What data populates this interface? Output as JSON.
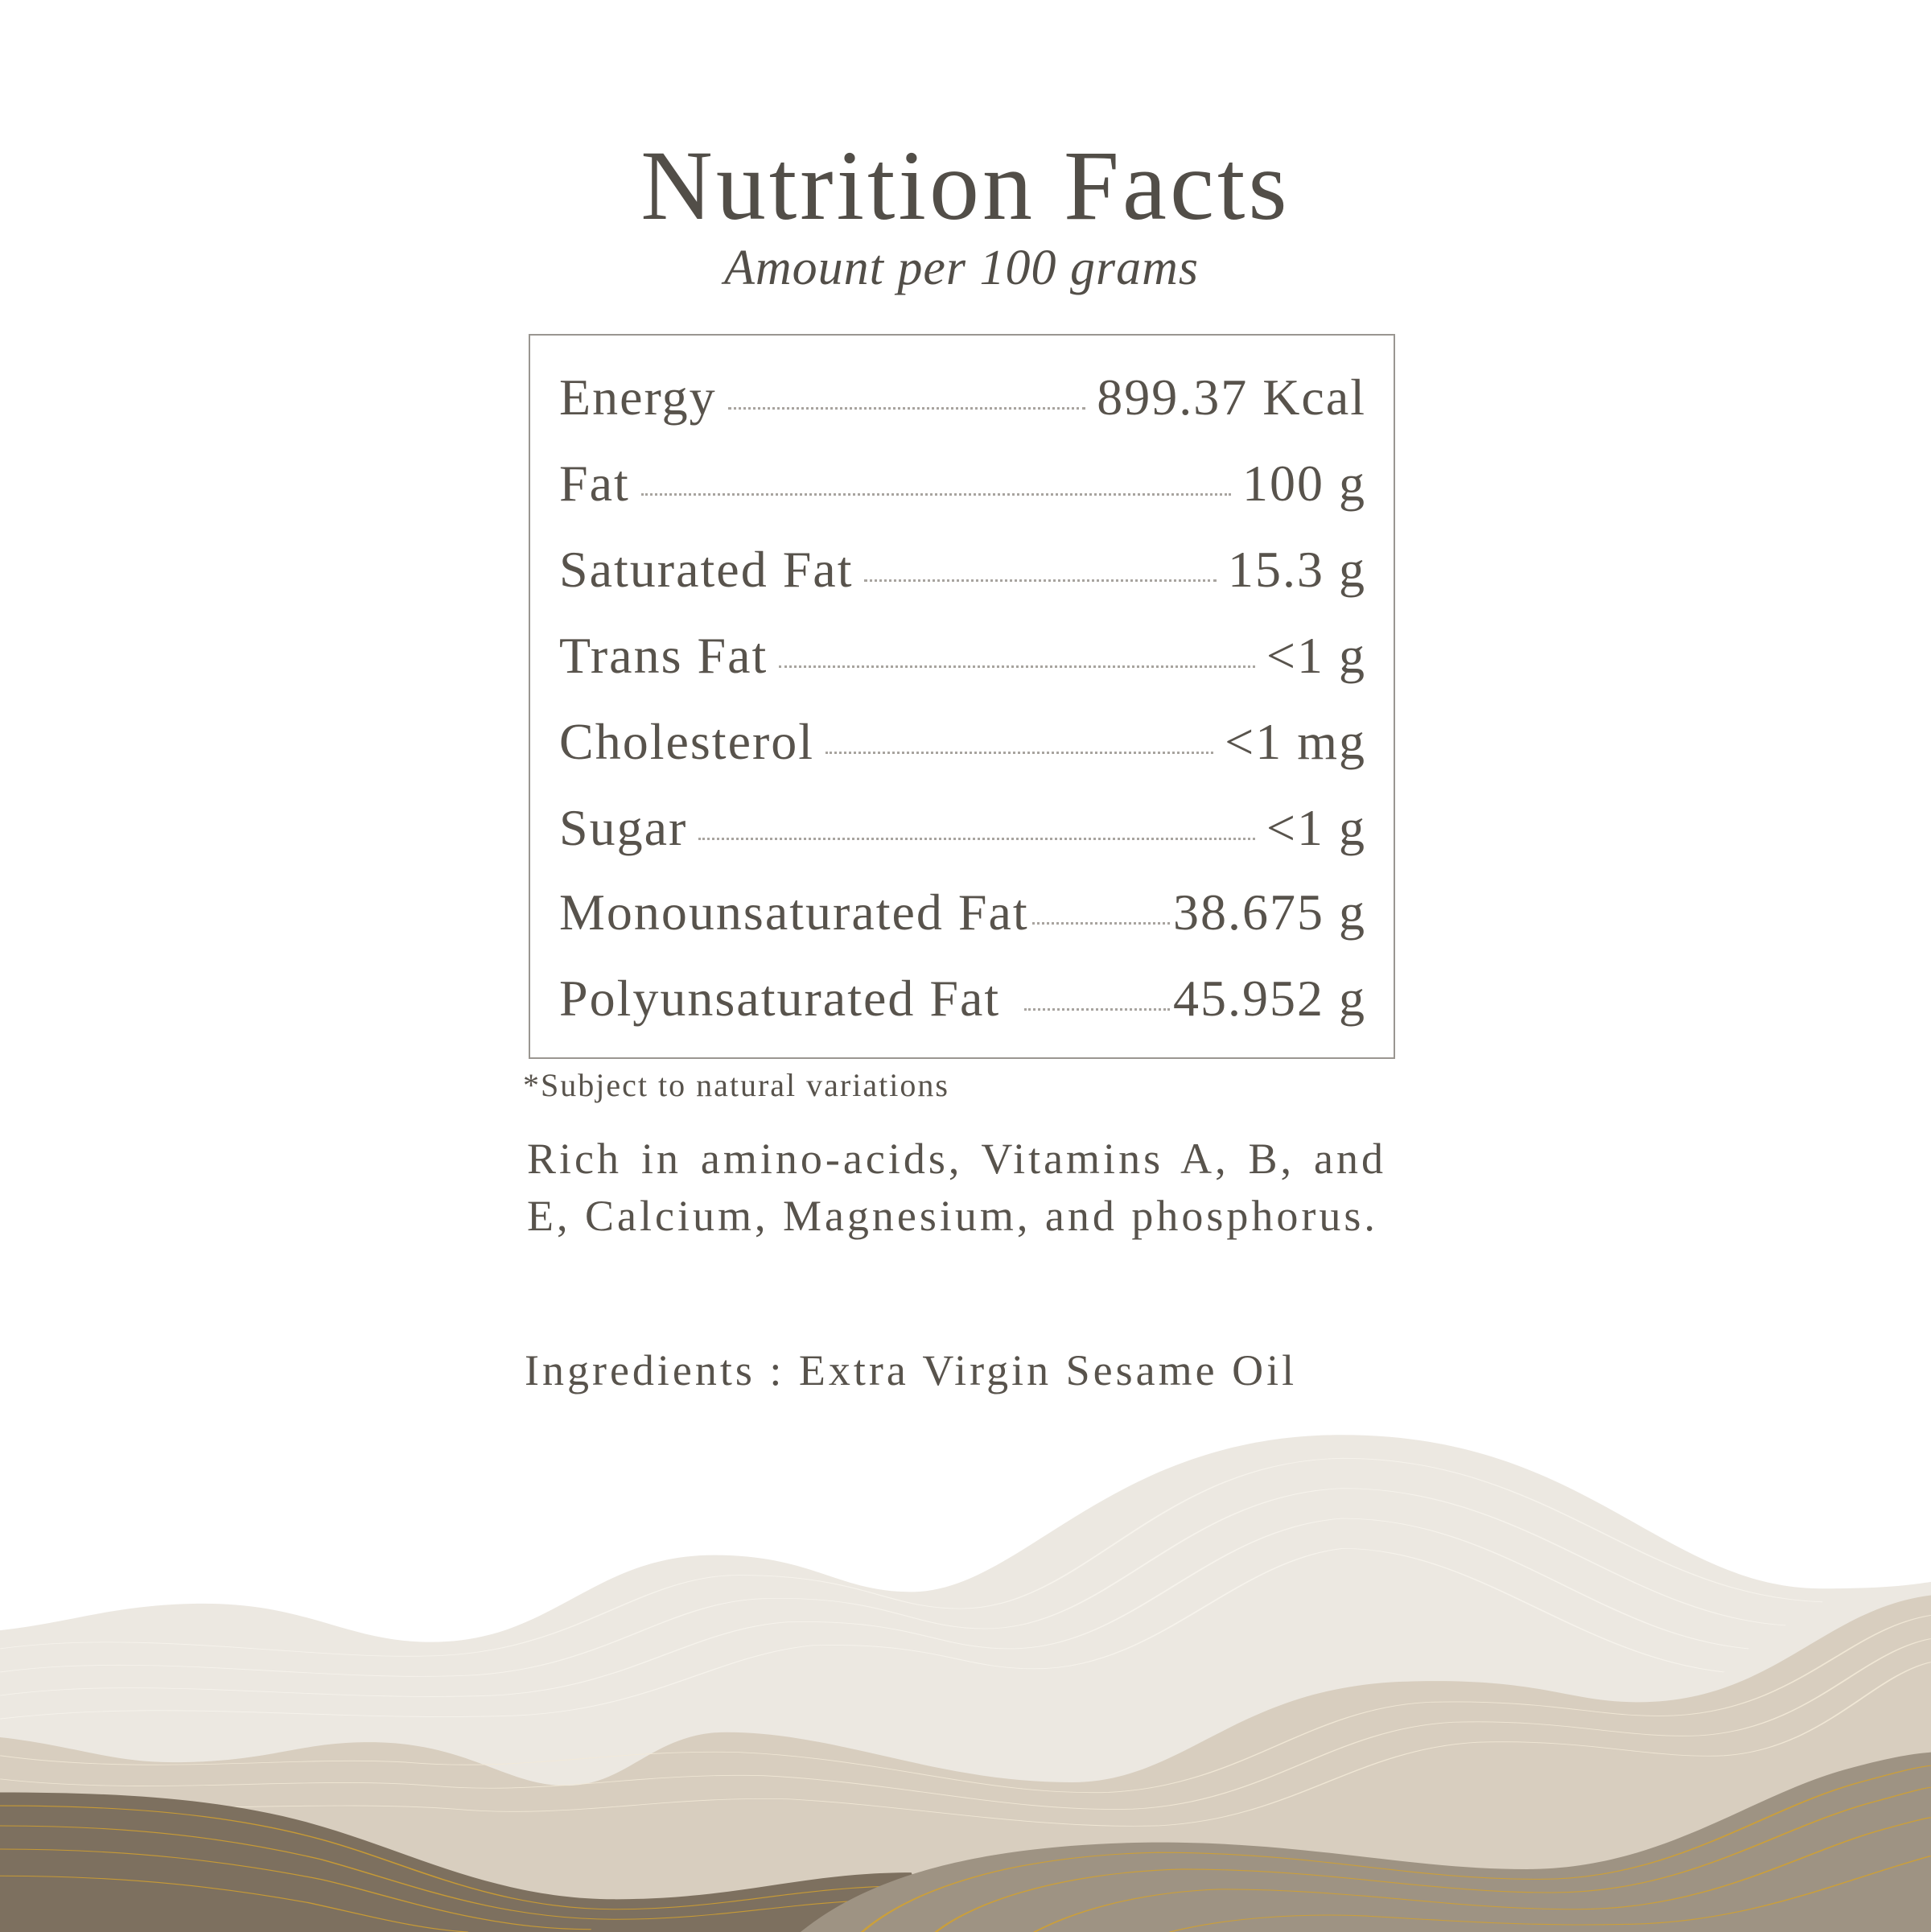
{
  "header": {
    "title": "Nutrition Facts",
    "subtitle": "Amount per 100 grams"
  },
  "nutrients": [
    {
      "label": "Energy",
      "value": "899.37 Kcal"
    },
    {
      "label": "Fat",
      "value": "100 g"
    },
    {
      "label": "Saturated Fat",
      "value": "15.3 g"
    },
    {
      "label": "Trans Fat",
      "value": "<1 g"
    },
    {
      "label": "Cholesterol",
      "value": "<1 mg"
    },
    {
      "label": "Sugar",
      "value": "<1 g"
    },
    {
      "label": "Monounsaturated Fat",
      "value": "38.675 g"
    },
    {
      "label": "Polyunsaturated Fat",
      "value": "45.952 g"
    }
  ],
  "footnote": "*Subject to natural variations",
  "description": "Rich in amino-acids, Vitamins A, B, and E, Calcium, Magnesium, and phosphorus.",
  "ingredients": "Ingredients : Extra Virgin Sesame Oil",
  "colors": {
    "text": "#58534c",
    "hill_light": "#ece8e1",
    "hill_beige": "#d8cebf",
    "hill_dark": "#7d705f",
    "hill_taupe": "#9e9383",
    "gold_lines": "#d4a22e"
  }
}
